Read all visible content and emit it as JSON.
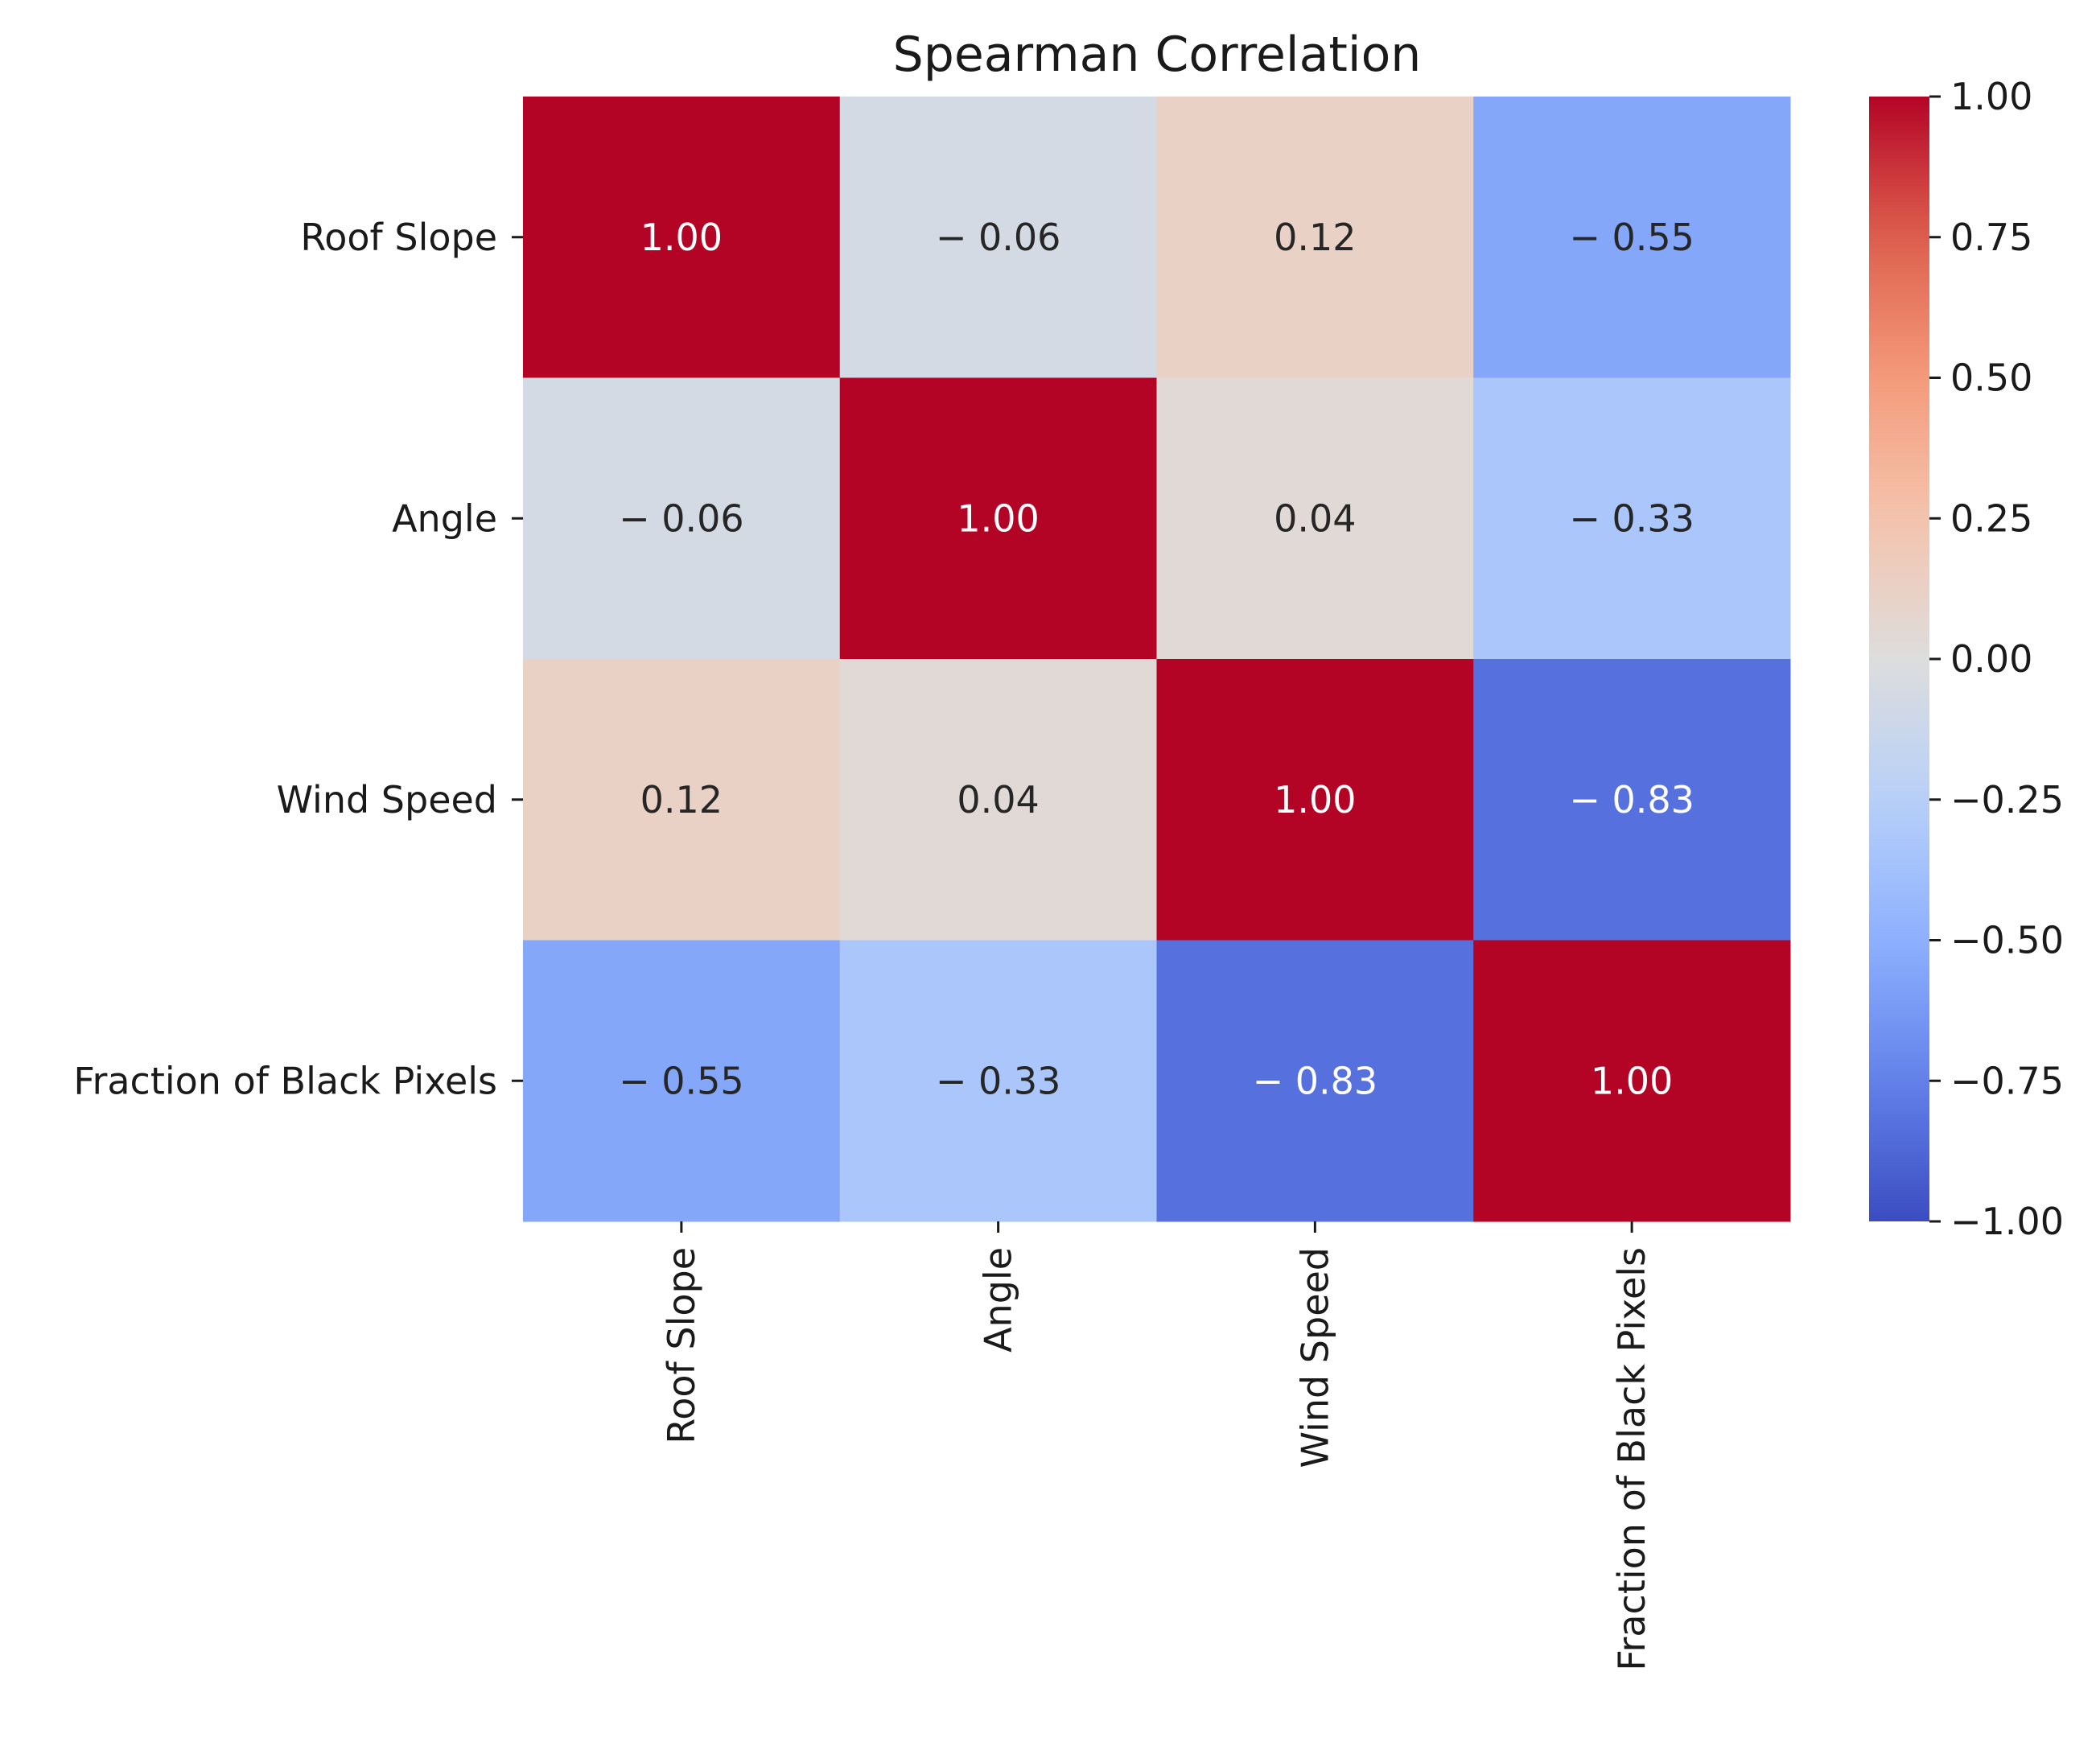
{
  "chart_data": {
    "type": "heatmap",
    "title": "Spearman Correlation",
    "xlabel": "",
    "ylabel": "",
    "variables": [
      "Roof Slope",
      "Angle",
      "Wind Speed",
      "Fraction of Black Pixels"
    ],
    "matrix": [
      [
        1.0,
        -0.06,
        0.12,
        -0.55
      ],
      [
        -0.06,
        1.0,
        0.04,
        -0.33
      ],
      [
        0.12,
        0.04,
        1.0,
        -0.83
      ],
      [
        -0.55,
        -0.33,
        -0.83,
        1.0
      ]
    ],
    "cell_labels": [
      [
        "1.00",
        "− 0.06",
        "0.12",
        "− 0.55"
      ],
      [
        "− 0.06",
        "1.00",
        "0.04",
        "− 0.33"
      ],
      [
        "0.12",
        "0.04",
        "1.00",
        "− 0.83"
      ],
      [
        "− 0.55",
        "− 0.33",
        "− 0.83",
        "1.00"
      ]
    ],
    "colormap": "coolwarm",
    "vmin": -1.0,
    "vmax": 1.0,
    "colorbar": {
      "ticks": [
        1.0,
        0.75,
        0.5,
        0.25,
        0.0,
        -0.25,
        -0.5,
        -0.75,
        -1.0
      ],
      "tick_labels": [
        "1.00",
        "0.75",
        "0.50",
        "0.25",
        "0.00",
        "−0.25",
        "−0.50",
        "−0.75",
        "−1.00"
      ],
      "placement": "right"
    },
    "grid": false
  }
}
